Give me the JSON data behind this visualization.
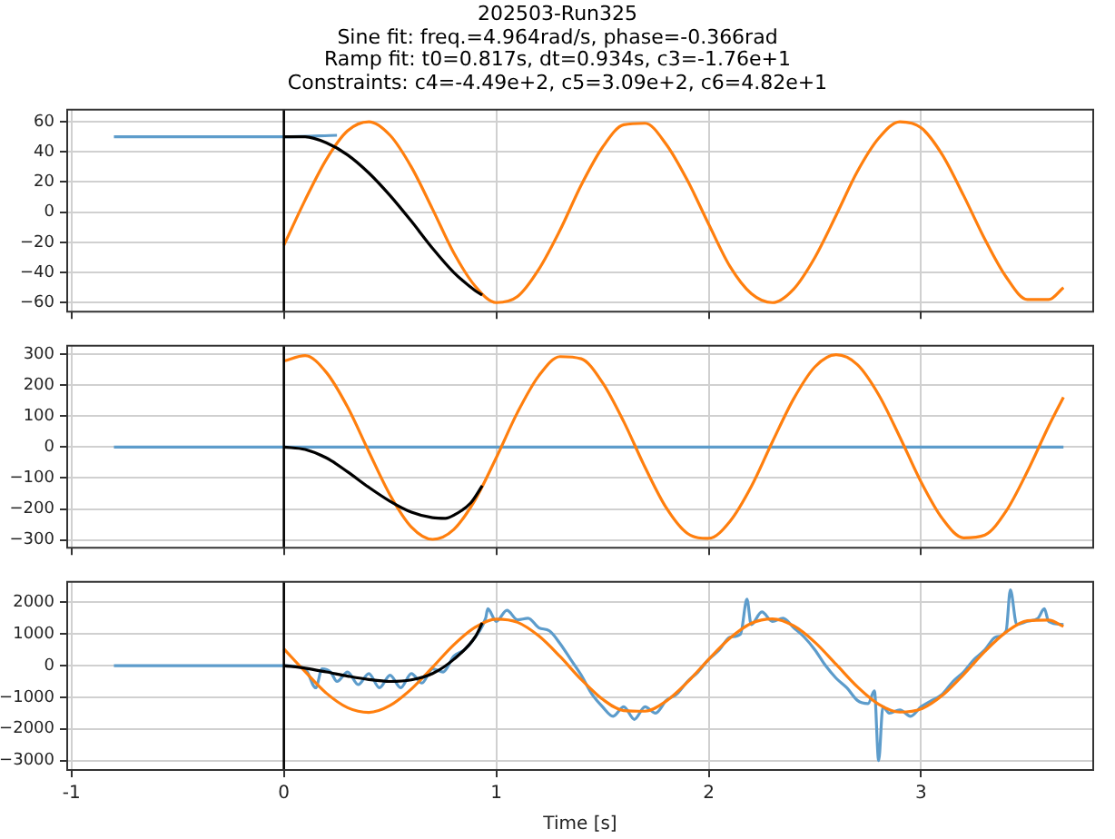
{
  "chart_data": [
    {
      "type": "line",
      "title": "202503-Run325",
      "subtitle": "Sine fit: freq.=4.964rad/s, phase=-0.366rad\nRamp fit: t0=0.817s, dt=0.934s, c3=-1.76e+1\nConstraints:  c4=-4.49e+2, c5=3.09e+2, c6=4.82e+1",
      "xlim": [
        -1.02,
        3.81
      ],
      "xticks": [
        -1,
        0,
        1,
        2,
        3
      ],
      "ylim": [
        -66,
        68
      ],
      "yticks": [
        -60,
        -40,
        -20,
        0,
        20,
        40,
        60
      ],
      "grid": true,
      "tick_labels": "y",
      "ref_lines": [
        {
          "axis": "x",
          "value": 0,
          "color": "#000000"
        }
      ],
      "series": [
        {
          "color": "#5d9ccb",
          "x": [
            -0.8,
            -0.4,
            -0.1,
            0,
            0.25
          ],
          "values": [
            50,
            50,
            50,
            50,
            51
          ]
        },
        {
          "color": "#ff7f0e",
          "x": [
            0,
            0.1,
            0.2,
            0.3,
            0.4,
            0.5,
            0.6,
            0.7,
            0.8,
            0.9,
            1.0,
            1.1,
            1.2,
            1.3,
            1.4,
            1.5,
            1.6,
            1.7,
            1.8,
            1.9,
            2.0,
            2.1,
            2.2,
            2.3,
            2.4,
            2.5,
            2.6,
            2.7,
            2.8,
            2.9,
            3.0,
            3.1,
            3.2,
            3.3,
            3.4,
            3.5,
            3.6,
            3.67
          ],
          "values": [
            -22,
            8,
            35,
            54,
            60,
            51,
            30,
            2,
            -27,
            -49,
            -60,
            -56,
            -38,
            -12,
            18,
            43,
            58,
            59,
            45,
            21,
            -8,
            -36,
            -54,
            -60,
            -51,
            -30,
            -2,
            27,
            49,
            60,
            56,
            38,
            11,
            -18,
            -43,
            -58,
            -58,
            -50
          ]
        },
        {
          "color": "#000000",
          "x": [
            0,
            0.1,
            0.2,
            0.3,
            0.4,
            0.5,
            0.6,
            0.7,
            0.8,
            0.9,
            0.934
          ],
          "values": [
            50,
            50,
            46,
            38,
            26,
            11,
            -6,
            -24,
            -40,
            -52,
            -55
          ]
        }
      ]
    },
    {
      "type": "line",
      "xlim": [
        -1.02,
        3.81
      ],
      "xticks": [
        -1,
        0,
        1,
        2,
        3
      ],
      "ylim": [
        -325,
        327
      ],
      "yticks": [
        -300,
        -200,
        -100,
        0,
        100,
        200,
        300
      ],
      "grid": true,
      "tick_labels": "y",
      "ref_lines": [
        {
          "axis": "x",
          "value": 0,
          "color": "#000000"
        }
      ],
      "series": [
        {
          "color": "#5d9ccb",
          "x": [
            -0.8,
            3.67
          ],
          "values": [
            0,
            0
          ]
        },
        {
          "color": "#ff7f0e",
          "x": [
            0,
            0.1,
            0.2,
            0.3,
            0.4,
            0.5,
            0.6,
            0.7,
            0.8,
            0.9,
            1.0,
            1.1,
            1.2,
            1.3,
            1.4,
            1.5,
            1.6,
            1.7,
            1.8,
            1.9,
            2.0,
            2.1,
            2.2,
            2.3,
            2.4,
            2.5,
            2.6,
            2.7,
            2.8,
            2.9,
            3.0,
            3.1,
            3.2,
            3.3,
            3.4,
            3.5,
            3.6,
            3.67
          ],
          "values": [
            278,
            295,
            241,
            129,
            -15,
            -155,
            -258,
            -298,
            -266,
            -171,
            -34,
            112,
            230,
            292,
            285,
            208,
            82,
            -65,
            -196,
            -279,
            -295,
            -240,
            -128,
            17,
            156,
            259,
            298,
            266,
            169,
            32,
            -113,
            -231,
            -293,
            -284,
            -207,
            -79,
            67,
            161
          ]
        },
        {
          "color": "#000000",
          "x": [
            0,
            0.1,
            0.2,
            0.3,
            0.4,
            0.5,
            0.6,
            0.7,
            0.76,
            0.8,
            0.88,
            0.934
          ],
          "values": [
            0,
            -8,
            -35,
            -80,
            -130,
            -175,
            -210,
            -228,
            -230,
            -220,
            -180,
            -125
          ]
        }
      ]
    },
    {
      "type": "line",
      "xlabel": "Time [s]",
      "xlim": [
        -1.02,
        3.81
      ],
      "xticks": [
        -1,
        0,
        1,
        2,
        3
      ],
      "ylim": [
        -3300,
        2650
      ],
      "yticks": [
        -3000,
        -2000,
        -1000,
        0,
        1000,
        2000
      ],
      "grid": true,
      "ref_lines": [
        {
          "axis": "x",
          "value": 0,
          "color": "#000000"
        }
      ],
      "series": [
        {
          "color": "#5d9ccb",
          "x": [
            -0.8,
            -0.4,
            0,
            0.1,
            0.15,
            0.18,
            0.22,
            0.25,
            0.3,
            0.35,
            0.4,
            0.45,
            0.5,
            0.55,
            0.6,
            0.65,
            0.7,
            0.75,
            0.8,
            0.85,
            0.9,
            0.95,
            0.96,
            1.0,
            1.05,
            1.1,
            1.15,
            1.2,
            1.25,
            1.3,
            1.35,
            1.4,
            1.45,
            1.5,
            1.55,
            1.6,
            1.65,
            1.7,
            1.75,
            1.8,
            1.85,
            1.9,
            1.95,
            2.0,
            2.05,
            2.1,
            2.15,
            2.18,
            2.2,
            2.25,
            2.3,
            2.35,
            2.4,
            2.45,
            2.5,
            2.55,
            2.6,
            2.65,
            2.7,
            2.75,
            2.78,
            2.8,
            2.82,
            2.85,
            2.9,
            2.95,
            3.0,
            3.05,
            3.1,
            3.15,
            3.2,
            3.25,
            3.3,
            3.35,
            3.4,
            3.42,
            3.45,
            3.5,
            3.55,
            3.58,
            3.6,
            3.67
          ],
          "values": [
            0,
            0,
            0,
            -100,
            -700,
            -100,
            -200,
            -500,
            -200,
            -600,
            -250,
            -700,
            -300,
            -700,
            -250,
            -550,
            -100,
            -200,
            300,
            500,
            900,
            1500,
            1800,
            1400,
            1750,
            1450,
            1500,
            1200,
            1100,
            700,
            200,
            -300,
            -900,
            -1300,
            -1600,
            -1300,
            -1700,
            -1300,
            -1500,
            -1100,
            -900,
            -500,
            -200,
            200,
            500,
            900,
            1000,
            2100,
            1300,
            1700,
            1400,
            1500,
            1200,
            900,
            500,
            0,
            -400,
            -700,
            -1100,
            -1200,
            -800,
            -3000,
            -1300,
            -1500,
            -1400,
            -1600,
            -1300,
            -1100,
            -900,
            -500,
            -200,
            200,
            500,
            900,
            1100,
            2400,
            1300,
            1400,
            1500,
            1800,
            1400,
            1300
          ]
        },
        {
          "color": "#ff7f0e",
          "x": [
            0,
            0.1,
            0.2,
            0.3,
            0.4,
            0.5,
            0.6,
            0.7,
            0.8,
            0.9,
            1.0,
            1.1,
            1.2,
            1.3,
            1.4,
            1.5,
            1.6,
            1.7,
            1.8,
            1.9,
            2.0,
            2.1,
            2.2,
            2.3,
            2.4,
            2.5,
            2.6,
            2.7,
            2.8,
            2.9,
            3.0,
            3.1,
            3.2,
            3.3,
            3.4,
            3.5,
            3.6,
            3.67
          ],
          "values": [
            530,
            -190,
            -870,
            -1330,
            -1480,
            -1260,
            -740,
            -50,
            660,
            1210,
            1470,
            1370,
            940,
            290,
            -440,
            -1060,
            -1420,
            -1440,
            -1120,
            -520,
            200,
            870,
            1340,
            1480,
            1260,
            740,
            40,
            -670,
            -1220,
            -1470,
            -1370,
            -940,
            -280,
            450,
            1060,
            1420,
            1440,
            1240
          ]
        },
        {
          "color": "#000000",
          "x": [
            0,
            0.1,
            0.2,
            0.3,
            0.4,
            0.5,
            0.6,
            0.7,
            0.8,
            0.9,
            0.934
          ],
          "values": [
            0,
            -80,
            -200,
            -330,
            -440,
            -500,
            -450,
            -250,
            200,
            900,
            1350
          ]
        }
      ]
    }
  ]
}
